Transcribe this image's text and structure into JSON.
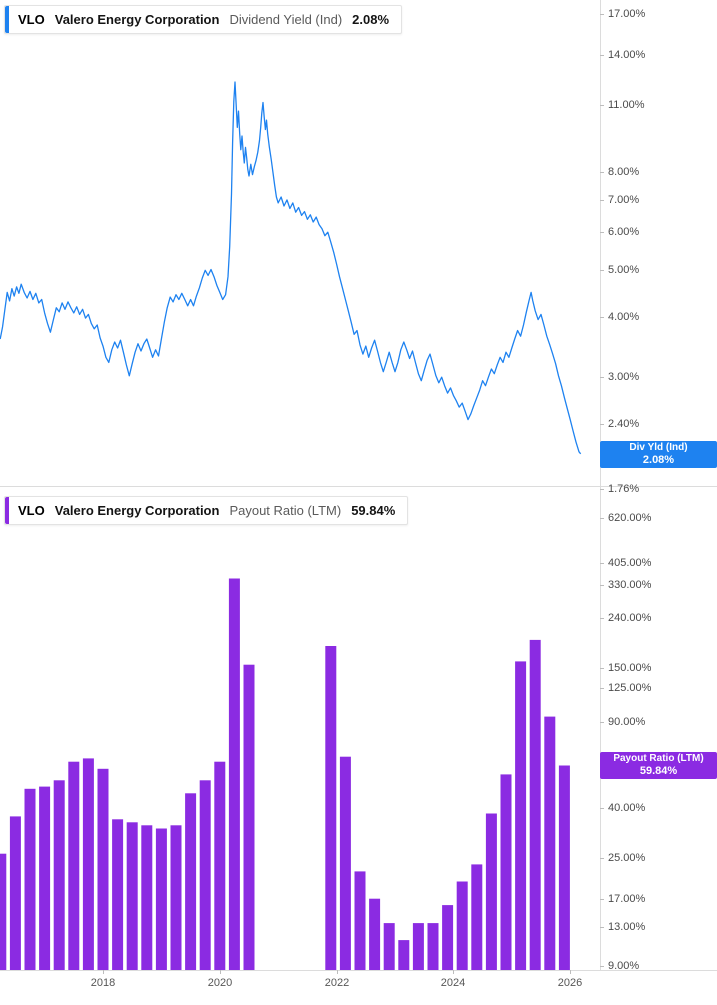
{
  "page": {
    "background": "#ffffff"
  },
  "panels": {
    "dividend_yield": {
      "accent": "#1e82f0",
      "legend": {
        "ticker": "VLO",
        "company": "Valero Energy Corporation",
        "metric": "Dividend Yield (Ind)",
        "value": "2.08%"
      },
      "badge": {
        "title": "Div Yld (Ind)",
        "value": "2.08%",
        "at": 2.08
      },
      "axis": [
        {
          "label": "17.00%",
          "value": 17
        },
        {
          "label": "14.00%",
          "value": 14
        },
        {
          "label": "11.00%",
          "value": 11
        },
        {
          "label": "8.00%",
          "value": 8
        },
        {
          "label": "7.00%",
          "value": 7
        },
        {
          "label": "6.00%",
          "value": 6
        },
        {
          "label": "5.00%",
          "value": 5
        },
        {
          "label": "4.00%",
          "value": 4
        },
        {
          "label": "3.00%",
          "value": 3
        },
        {
          "label": "2.40%",
          "value": 2.4
        },
        {
          "label": "1.76%",
          "value": 1.76
        }
      ]
    },
    "payout_ratio": {
      "accent": "#8b2be2",
      "legend": {
        "ticker": "VLO",
        "company": "Valero Energy Corporation",
        "metric": "Payout Ratio (LTM)",
        "value": "59.84%"
      },
      "badge": {
        "title": "Payout Ratio (LTM)",
        "value": "59.84%",
        "at": 59.84
      },
      "axis": [
        {
          "label": "620.00%",
          "value": 620
        },
        {
          "label": "405.00%",
          "value": 405
        },
        {
          "label": "330.00%",
          "value": 330
        },
        {
          "label": "240.00%",
          "value": 240
        },
        {
          "label": "150.00%",
          "value": 150
        },
        {
          "label": "125.00%",
          "value": 125
        },
        {
          "label": "90.00%",
          "value": 90
        },
        {
          "label": "40.00%",
          "value": 40
        },
        {
          "label": "25.00%",
          "value": 25
        },
        {
          "label": "17.00%",
          "value": 17
        },
        {
          "label": "13.00%",
          "value": 13
        },
        {
          "label": "9.00%",
          "value": 9
        }
      ]
    }
  },
  "x_axis": [
    {
      "label": "2018",
      "value": 2018
    },
    {
      "label": "2020",
      "value": 2020
    },
    {
      "label": "2022",
      "value": 2022
    },
    {
      "label": "2024",
      "value": 2024
    },
    {
      "label": "2026",
      "value": 2026
    }
  ],
  "chart_data": [
    {
      "type": "line",
      "title": "VLO Dividend Yield (Ind)",
      "unit": "%",
      "y_scale": "log",
      "color": "#1e82f0",
      "x_range": [
        2016.24,
        2026.2
      ],
      "y_ticks": [
        17,
        14,
        11,
        8,
        7,
        6,
        5,
        4,
        3,
        2.4,
        1.76
      ],
      "last_value": 2.08,
      "points": [
        [
          2016.24,
          3.6
        ],
        [
          2016.28,
          3.82
        ],
        [
          2016.32,
          4.15
        ],
        [
          2016.36,
          4.5
        ],
        [
          2016.4,
          4.32
        ],
        [
          2016.44,
          4.58
        ],
        [
          2016.48,
          4.42
        ],
        [
          2016.52,
          4.62
        ],
        [
          2016.56,
          4.48
        ],
        [
          2016.6,
          4.68
        ],
        [
          2016.65,
          4.5
        ],
        [
          2016.7,
          4.38
        ],
        [
          2016.75,
          4.52
        ],
        [
          2016.8,
          4.35
        ],
        [
          2016.85,
          4.48
        ],
        [
          2016.9,
          4.28
        ],
        [
          2016.95,
          4.35
        ],
        [
          2017.0,
          4.08
        ],
        [
          2017.05,
          3.88
        ],
        [
          2017.1,
          3.72
        ],
        [
          2017.15,
          3.95
        ],
        [
          2017.2,
          4.18
        ],
        [
          2017.25,
          4.1
        ],
        [
          2017.3,
          4.28
        ],
        [
          2017.35,
          4.15
        ],
        [
          2017.4,
          4.3
        ],
        [
          2017.45,
          4.18
        ],
        [
          2017.5,
          4.08
        ],
        [
          2017.55,
          4.2
        ],
        [
          2017.6,
          4.05
        ],
        [
          2017.65,
          4.15
        ],
        [
          2017.7,
          3.98
        ],
        [
          2017.75,
          4.05
        ],
        [
          2017.8,
          3.88
        ],
        [
          2017.85,
          3.78
        ],
        [
          2017.9,
          3.85
        ],
        [
          2017.95,
          3.62
        ],
        [
          2018.0,
          3.48
        ],
        [
          2018.05,
          3.3
        ],
        [
          2018.1,
          3.22
        ],
        [
          2018.15,
          3.42
        ],
        [
          2018.2,
          3.55
        ],
        [
          2018.25,
          3.45
        ],
        [
          2018.3,
          3.58
        ],
        [
          2018.35,
          3.38
        ],
        [
          2018.4,
          3.18
        ],
        [
          2018.45,
          3.02
        ],
        [
          2018.5,
          3.2
        ],
        [
          2018.55,
          3.38
        ],
        [
          2018.6,
          3.52
        ],
        [
          2018.65,
          3.4
        ],
        [
          2018.7,
          3.52
        ],
        [
          2018.75,
          3.6
        ],
        [
          2018.8,
          3.45
        ],
        [
          2018.85,
          3.3
        ],
        [
          2018.9,
          3.42
        ],
        [
          2018.95,
          3.32
        ],
        [
          2019.0,
          3.6
        ],
        [
          2019.05,
          3.9
        ],
        [
          2019.1,
          4.18
        ],
        [
          2019.15,
          4.4
        ],
        [
          2019.2,
          4.3
        ],
        [
          2019.25,
          4.45
        ],
        [
          2019.3,
          4.35
        ],
        [
          2019.35,
          4.48
        ],
        [
          2019.4,
          4.35
        ],
        [
          2019.45,
          4.22
        ],
        [
          2019.5,
          4.35
        ],
        [
          2019.55,
          4.22
        ],
        [
          2019.6,
          4.42
        ],
        [
          2019.65,
          4.6
        ],
        [
          2019.7,
          4.82
        ],
        [
          2019.75,
          5.0
        ],
        [
          2019.8,
          4.88
        ],
        [
          2019.85,
          5.02
        ],
        [
          2019.9,
          4.85
        ],
        [
          2019.95,
          4.65
        ],
        [
          2020.0,
          4.5
        ],
        [
          2020.05,
          4.35
        ],
        [
          2020.1,
          4.45
        ],
        [
          2020.14,
          4.85
        ],
        [
          2020.17,
          5.6
        ],
        [
          2020.2,
          7.2
        ],
        [
          2020.22,
          9.2
        ],
        [
          2020.24,
          11.2
        ],
        [
          2020.26,
          12.3
        ],
        [
          2020.28,
          11.0
        ],
        [
          2020.3,
          9.9
        ],
        [
          2020.32,
          10.7
        ],
        [
          2020.34,
          9.6
        ],
        [
          2020.36,
          8.9
        ],
        [
          2020.38,
          9.5
        ],
        [
          2020.4,
          8.8
        ],
        [
          2020.42,
          8.35
        ],
        [
          2020.44,
          9.0
        ],
        [
          2020.46,
          8.55
        ],
        [
          2020.48,
          8.1
        ],
        [
          2020.5,
          7.85
        ],
        [
          2020.53,
          8.3
        ],
        [
          2020.56,
          7.9
        ],
        [
          2020.59,
          8.2
        ],
        [
          2020.62,
          8.45
        ],
        [
          2020.65,
          8.8
        ],
        [
          2020.68,
          9.3
        ],
        [
          2020.7,
          9.9
        ],
        [
          2020.72,
          10.6
        ],
        [
          2020.74,
          11.15
        ],
        [
          2020.76,
          10.4
        ],
        [
          2020.78,
          9.8
        ],
        [
          2020.8,
          10.25
        ],
        [
          2020.82,
          9.6
        ],
        [
          2020.85,
          9.0
        ],
        [
          2020.88,
          8.5
        ],
        [
          2020.91,
          8.0
        ],
        [
          2020.94,
          7.5
        ],
        [
          2020.97,
          7.1
        ],
        [
          2021.0,
          6.9
        ],
        [
          2021.05,
          7.1
        ],
        [
          2021.1,
          6.8
        ],
        [
          2021.15,
          7.0
        ],
        [
          2021.2,
          6.72
        ],
        [
          2021.25,
          6.9
        ],
        [
          2021.3,
          6.6
        ],
        [
          2021.35,
          6.75
        ],
        [
          2021.4,
          6.5
        ],
        [
          2021.45,
          6.62
        ],
        [
          2021.5,
          6.38
        ],
        [
          2021.55,
          6.52
        ],
        [
          2021.6,
          6.3
        ],
        [
          2021.65,
          6.45
        ],
        [
          2021.7,
          6.22
        ],
        [
          2021.75,
          6.1
        ],
        [
          2021.8,
          5.9
        ],
        [
          2021.85,
          6.0
        ],
        [
          2021.9,
          5.72
        ],
        [
          2021.95,
          5.45
        ],
        [
          2022.0,
          5.15
        ],
        [
          2022.05,
          4.85
        ],
        [
          2022.1,
          4.6
        ],
        [
          2022.15,
          4.35
        ],
        [
          2022.2,
          4.12
        ],
        [
          2022.25,
          3.9
        ],
        [
          2022.3,
          3.68
        ],
        [
          2022.35,
          3.75
        ],
        [
          2022.4,
          3.5
        ],
        [
          2022.45,
          3.35
        ],
        [
          2022.5,
          3.48
        ],
        [
          2022.55,
          3.3
        ],
        [
          2022.6,
          3.45
        ],
        [
          2022.65,
          3.58
        ],
        [
          2022.7,
          3.4
        ],
        [
          2022.75,
          3.22
        ],
        [
          2022.8,
          3.08
        ],
        [
          2022.85,
          3.22
        ],
        [
          2022.9,
          3.38
        ],
        [
          2022.95,
          3.22
        ],
        [
          2023.0,
          3.08
        ],
        [
          2023.05,
          3.22
        ],
        [
          2023.1,
          3.42
        ],
        [
          2023.15,
          3.55
        ],
        [
          2023.2,
          3.42
        ],
        [
          2023.25,
          3.28
        ],
        [
          2023.3,
          3.4
        ],
        [
          2023.35,
          3.22
        ],
        [
          2023.4,
          3.05
        ],
        [
          2023.45,
          2.95
        ],
        [
          2023.5,
          3.1
        ],
        [
          2023.55,
          3.25
        ],
        [
          2023.6,
          3.35
        ],
        [
          2023.65,
          3.18
        ],
        [
          2023.7,
          3.02
        ],
        [
          2023.75,
          2.92
        ],
        [
          2023.8,
          3.0
        ],
        [
          2023.85,
          2.88
        ],
        [
          2023.9,
          2.78
        ],
        [
          2023.95,
          2.85
        ],
        [
          2024.0,
          2.75
        ],
        [
          2024.05,
          2.68
        ],
        [
          2024.1,
          2.6
        ],
        [
          2024.15,
          2.65
        ],
        [
          2024.2,
          2.55
        ],
        [
          2024.25,
          2.45
        ],
        [
          2024.3,
          2.52
        ],
        [
          2024.35,
          2.62
        ],
        [
          2024.4,
          2.72
        ],
        [
          2024.45,
          2.82
        ],
        [
          2024.5,
          2.95
        ],
        [
          2024.55,
          2.88
        ],
        [
          2024.6,
          3.0
        ],
        [
          2024.65,
          3.12
        ],
        [
          2024.7,
          3.05
        ],
        [
          2024.75,
          3.18
        ],
        [
          2024.8,
          3.3
        ],
        [
          2024.85,
          3.22
        ],
        [
          2024.9,
          3.38
        ],
        [
          2024.95,
          3.3
        ],
        [
          2025.0,
          3.45
        ],
        [
          2025.05,
          3.6
        ],
        [
          2025.1,
          3.75
        ],
        [
          2025.15,
          3.65
        ],
        [
          2025.2,
          3.85
        ],
        [
          2025.25,
          4.1
        ],
        [
          2025.3,
          4.35
        ],
        [
          2025.33,
          4.5
        ],
        [
          2025.36,
          4.32
        ],
        [
          2025.4,
          4.12
        ],
        [
          2025.45,
          3.95
        ],
        [
          2025.5,
          4.05
        ],
        [
          2025.55,
          3.85
        ],
        [
          2025.6,
          3.65
        ],
        [
          2025.65,
          3.5
        ],
        [
          2025.7,
          3.35
        ],
        [
          2025.75,
          3.2
        ],
        [
          2025.8,
          3.02
        ],
        [
          2025.85,
          2.88
        ],
        [
          2025.9,
          2.72
        ],
        [
          2025.95,
          2.58
        ],
        [
          2026.0,
          2.45
        ],
        [
          2026.05,
          2.32
        ],
        [
          2026.1,
          2.2
        ],
        [
          2026.15,
          2.1
        ],
        [
          2026.18,
          2.08
        ]
      ]
    },
    {
      "type": "bar",
      "title": "VLO Payout Ratio (LTM)",
      "unit": "%",
      "y_scale": "log",
      "color": "#8b2be2",
      "y_ticks": [
        620,
        405,
        330,
        240,
        150,
        125,
        90,
        40,
        25,
        17,
        13,
        9
      ],
      "last_value": 59.84,
      "bars": [
        [
          2016.25,
          26
        ],
        [
          2016.5,
          37
        ],
        [
          2016.75,
          48
        ],
        [
          2017.0,
          49
        ],
        [
          2017.25,
          52
        ],
        [
          2017.5,
          62
        ],
        [
          2017.75,
          64
        ],
        [
          2018.0,
          58
        ],
        [
          2018.25,
          36
        ],
        [
          2018.5,
          35
        ],
        [
          2018.75,
          34
        ],
        [
          2019.0,
          33
        ],
        [
          2019.25,
          34
        ],
        [
          2019.5,
          46
        ],
        [
          2019.75,
          52
        ],
        [
          2020.0,
          62
        ],
        [
          2020.25,
          350
        ],
        [
          2020.5,
          155
        ],
        [
          2021.9,
          185
        ],
        [
          2022.15,
          65
        ],
        [
          2022.4,
          22
        ],
        [
          2022.65,
          17
        ],
        [
          2022.9,
          13.5
        ],
        [
          2023.15,
          11.5
        ],
        [
          2023.4,
          13.5
        ],
        [
          2023.65,
          13.5
        ],
        [
          2023.9,
          16
        ],
        [
          2024.15,
          20
        ],
        [
          2024.4,
          23.5
        ],
        [
          2024.65,
          38
        ],
        [
          2024.9,
          55
        ],
        [
          2025.15,
          160
        ],
        [
          2025.4,
          196
        ],
        [
          2025.65,
          95
        ],
        [
          2025.9,
          59.84
        ]
      ]
    }
  ]
}
